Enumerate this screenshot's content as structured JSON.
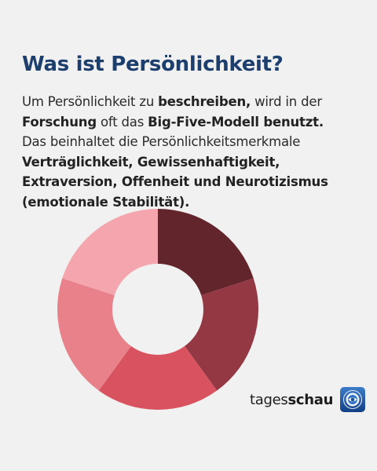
{
  "title": "Was ist Persönlichkeit?",
  "paragraph": {
    "s1": "Um Persönlichkeit zu ",
    "s2": "beschreiben,",
    "s3": " wird in der ",
    "s4": "Forschung",
    "s5": " oft das ",
    "s6": "Big-Five-Modell benutzt.",
    "s7": " Das beinhaltet die Persönlichkeitsmerkmale ",
    "s8": "Verträglichkeit, Gewissenhaftigkeit, Extraversion, Offenheit und Neurotizismus (emotionale Stabilität)."
  },
  "brand": {
    "regular": "tages",
    "bold": "schau",
    "icon": "tagesschau-logo-icon"
  },
  "donut": {
    "segment_count": 5,
    "segment_share": [
      0.2,
      0.2,
      0.2,
      0.2,
      0.2
    ],
    "colors": [
      "#62252c",
      "#943843",
      "#d8535f",
      "#e8818a",
      "#f4a5ad"
    ]
  }
}
